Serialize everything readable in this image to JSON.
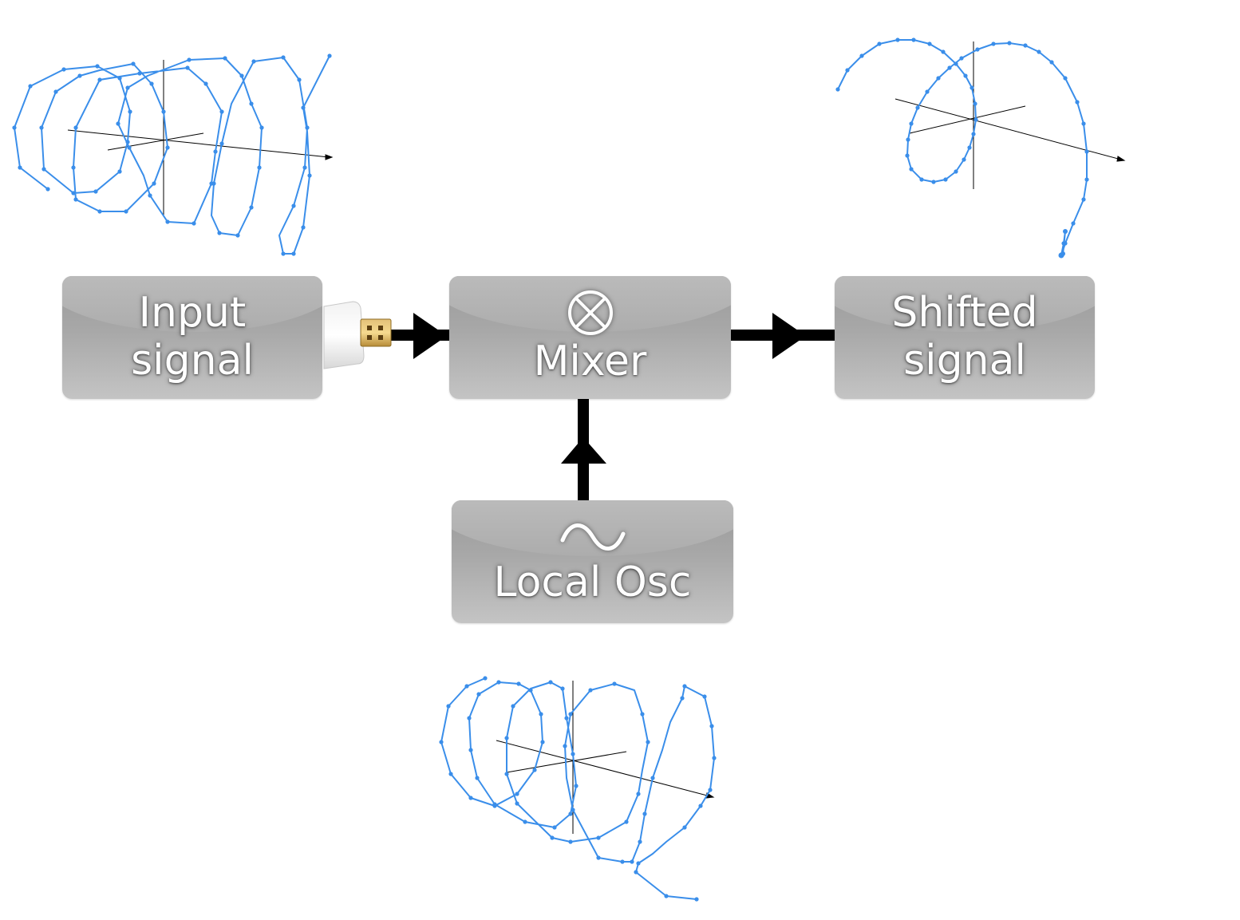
{
  "blocks": {
    "input": {
      "line1": "Input",
      "line2": "signal",
      "icon": "usb-connector-icon"
    },
    "mixer": {
      "label": "Mixer",
      "icon": "circled-times-icon"
    },
    "shifted": {
      "line1": "Shifted",
      "line2": "signal"
    },
    "local_osc": {
      "label": "Local Osc",
      "icon": "sine-wave-icon"
    }
  },
  "connections": [
    {
      "from": "input",
      "to": "mixer"
    },
    {
      "from": "mixer",
      "to": "shifted"
    },
    {
      "from": "local_osc",
      "to": "mixer"
    }
  ],
  "colors": {
    "curve": "#3a8eea",
    "block_fill": "#a8a8a8",
    "block_text": "#ffffff",
    "arrow": "#000000"
  }
}
